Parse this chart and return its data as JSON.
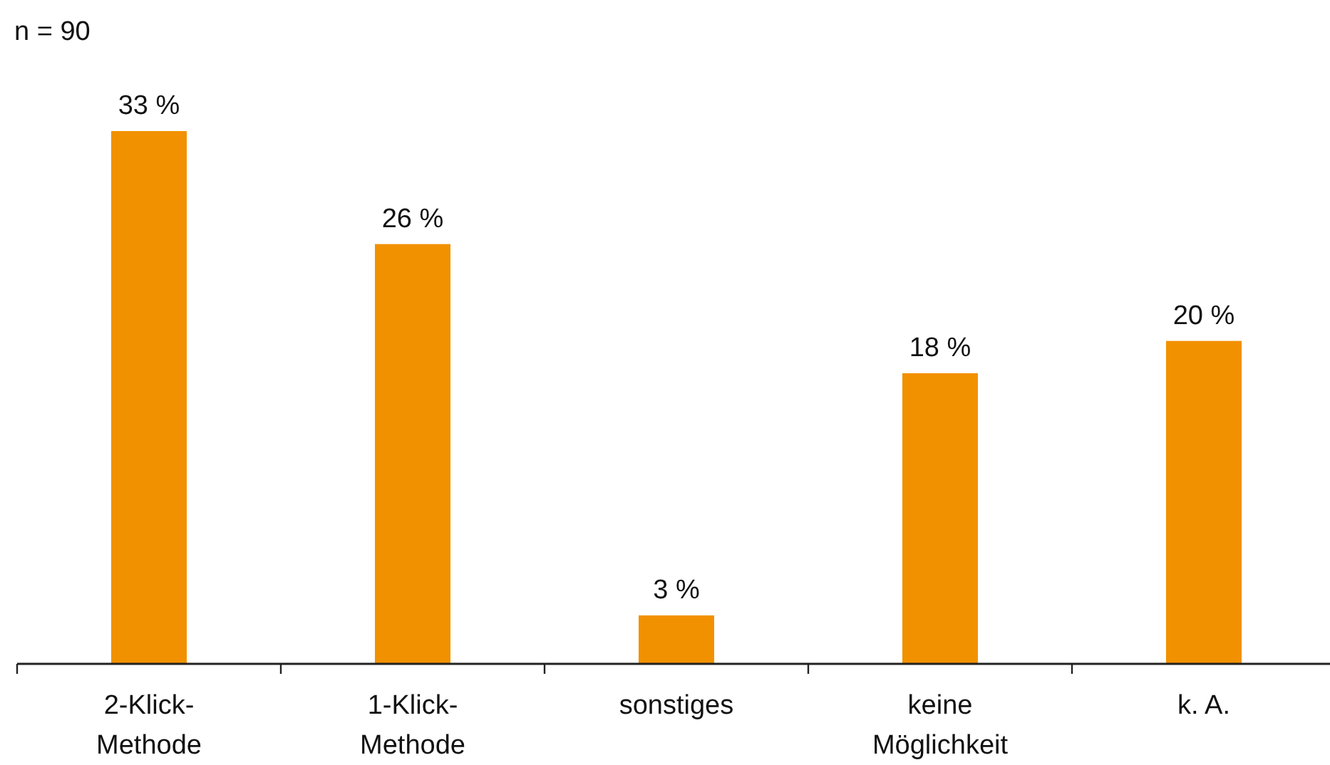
{
  "chart_data": {
    "type": "bar",
    "categories": [
      "2-Klick-Methode",
      "1-Klick-Methode",
      "sonstiges",
      "keine Möglichkeit",
      "k. A."
    ],
    "values": [
      33,
      26,
      3,
      18,
      20
    ],
    "color": "#f29100",
    "value_labels": [
      "33 %",
      "26 %",
      "3 %",
      "18 %",
      "20 %"
    ],
    "annotations": [
      "n = 90"
    ]
  }
}
